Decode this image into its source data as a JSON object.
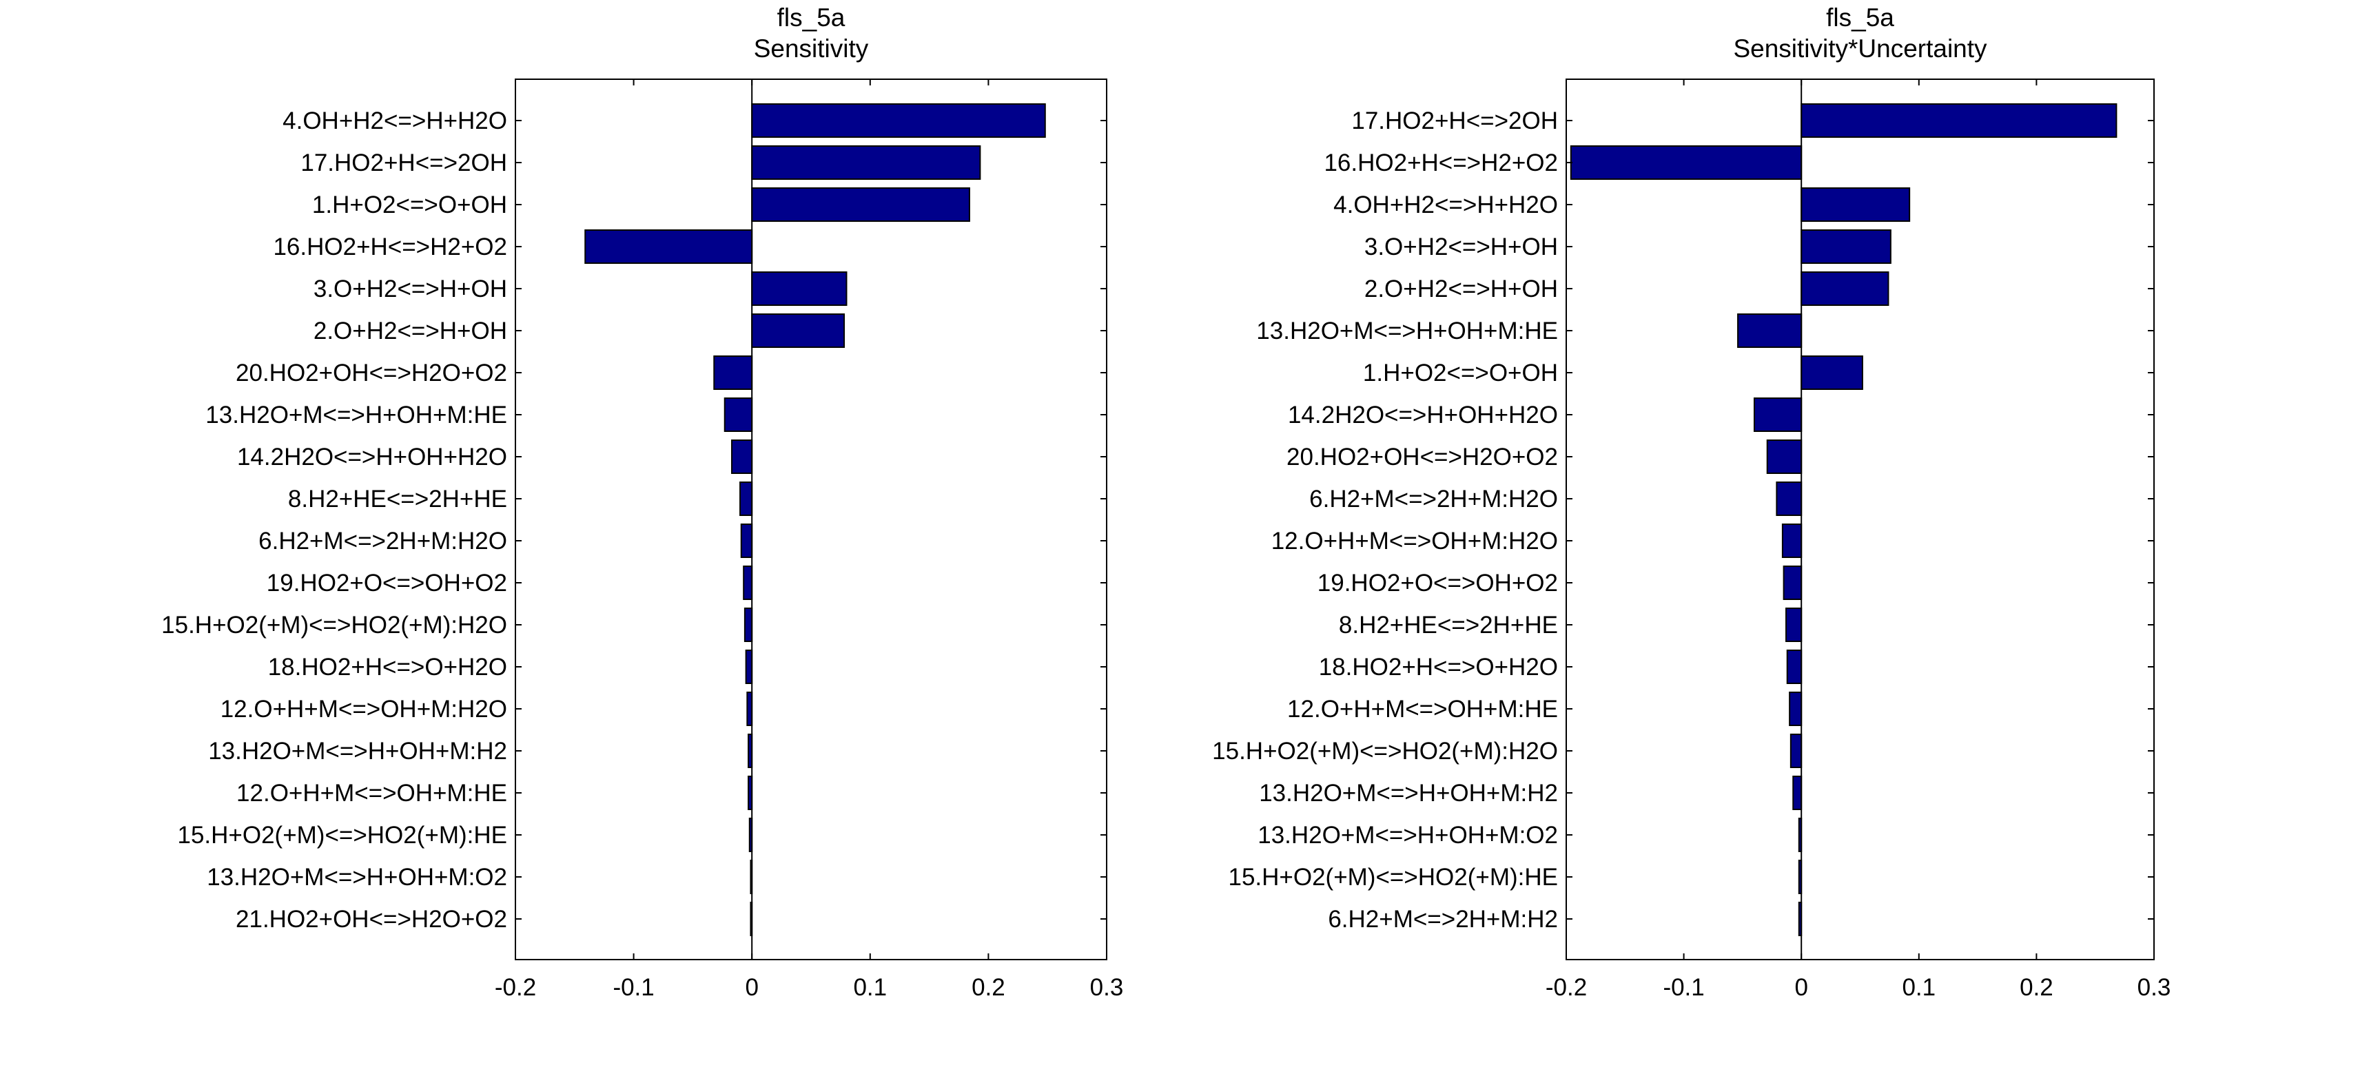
{
  "chart_data": [
    {
      "type": "bar",
      "orientation": "horizontal",
      "title": "fls_5a",
      "subtitle": "Sensitivity",
      "xlim": [
        -0.2,
        0.3
      ],
      "xticks": [
        "-0.2",
        "-0.1",
        "0",
        "0.1",
        "0.2",
        "0.3"
      ],
      "xtick_values": [
        -0.2,
        -0.1,
        0,
        0.1,
        0.2,
        0.3
      ],
      "grid": false,
      "bar_color": "#00008b",
      "categories": [
        "4.OH+H2<=>H+H2O",
        "17.HO2+H<=>2OH",
        "1.H+O2<=>O+OH",
        "16.HO2+H<=>H2+O2",
        "3.O+H2<=>H+OH",
        "2.O+H2<=>H+OH",
        "20.HO2+OH<=>H2O+O2",
        "13.H2O+M<=>H+OH+M:HE",
        "14.2H2O<=>H+OH+H2O",
        "8.H2+HE<=>2H+HE",
        "6.H2+M<=>2H+M:H2O",
        "19.HO2+O<=>OH+O2",
        "15.H+O2(+M)<=>HO2(+M):H2O",
        "18.HO2+H<=>O+H2O",
        "12.O+H+M<=>OH+M:H2O",
        "13.H2O+M<=>H+OH+M:H2",
        "12.O+H+M<=>OH+M:HE",
        "15.H+O2(+M)<=>HO2(+M):HE",
        "13.H2O+M<=>H+OH+M:O2",
        "21.HO2+OH<=>H2O+O2"
      ],
      "values": [
        0.248,
        0.193,
        0.184,
        -0.141,
        0.08,
        0.078,
        -0.032,
        -0.023,
        -0.017,
        -0.01,
        -0.009,
        -0.007,
        -0.006,
        -0.005,
        -0.004,
        -0.003,
        -0.003,
        -0.002,
        -0.001,
        -0.001
      ]
    },
    {
      "type": "bar",
      "orientation": "horizontal",
      "title": "fls_5a",
      "subtitle": "Sensitivity*Uncertainty",
      "xlim": [
        -0.2,
        0.3
      ],
      "xticks": [
        "-0.2",
        "-0.1",
        "0",
        "0.1",
        "0.2",
        "0.3"
      ],
      "xtick_values": [
        -0.2,
        -0.1,
        0,
        0.1,
        0.2,
        0.3
      ],
      "grid": false,
      "bar_color": "#00008b",
      "categories": [
        "17.HO2+H<=>2OH",
        "16.HO2+H<=>H2+O2",
        "4.OH+H2<=>H+H2O",
        "3.O+H2<=>H+OH",
        "2.O+H2<=>H+OH",
        "13.H2O+M<=>H+OH+M:HE",
        "1.H+O2<=>O+OH",
        "14.2H2O<=>H+OH+H2O",
        "20.HO2+OH<=>H2O+O2",
        "6.H2+M<=>2H+M:H2O",
        "12.O+H+M<=>OH+M:H2O",
        "19.HO2+O<=>OH+O2",
        "8.H2+HE<=>2H+HE",
        "18.HO2+H<=>O+H2O",
        "12.O+H+M<=>OH+M:HE",
        "15.H+O2(+M)<=>HO2(+M):H2O",
        "13.H2O+M<=>H+OH+M:H2",
        "13.H2O+M<=>H+OH+M:O2",
        "15.H+O2(+M)<=>HO2(+M):HE",
        "6.H2+M<=>2H+M:H2"
      ],
      "values": [
        0.268,
        -0.196,
        0.092,
        0.076,
        0.074,
        -0.054,
        0.052,
        -0.04,
        -0.029,
        -0.021,
        -0.016,
        -0.015,
        -0.013,
        -0.012,
        -0.01,
        -0.009,
        -0.007,
        -0.002,
        -0.002,
        -0.002
      ]
    }
  ]
}
